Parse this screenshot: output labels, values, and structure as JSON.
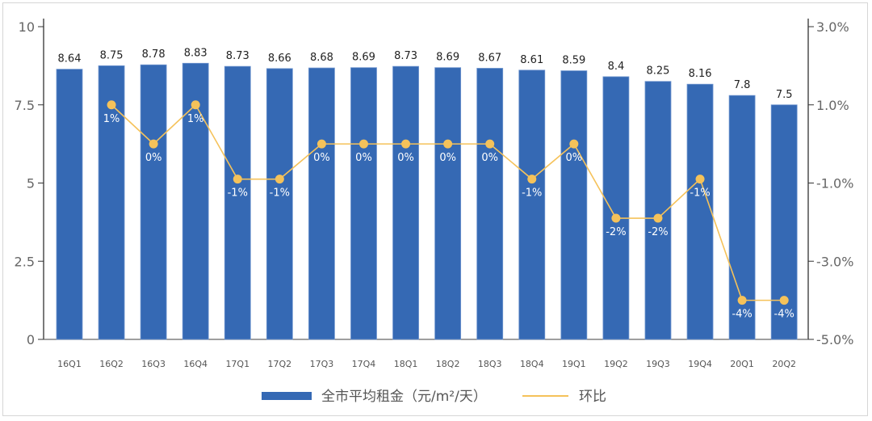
{
  "chart_data": {
    "type": "bar+line",
    "categories": [
      "16Q1",
      "16Q2",
      "16Q3",
      "16Q4",
      "17Q1",
      "17Q2",
      "17Q3",
      "17Q4",
      "18Q1",
      "18Q2",
      "18Q3",
      "18Q4",
      "19Q1",
      "19Q2",
      "19Q3",
      "19Q4",
      "20Q1",
      "20Q2"
    ],
    "series": [
      {
        "name": "全市平均租金（元/m²/天）",
        "type": "bar",
        "axis": "left",
        "color": "#3569b4",
        "values": [
          8.64,
          8.75,
          8.78,
          8.83,
          8.73,
          8.66,
          8.68,
          8.69,
          8.73,
          8.69,
          8.67,
          8.61,
          8.59,
          8.4,
          8.25,
          8.16,
          7.8,
          7.5
        ],
        "labels": [
          "8.64",
          "8.75",
          "8.78",
          "8.83",
          "8.73",
          "8.66",
          "8.68",
          "8.69",
          "8.73",
          "8.69",
          "8.67",
          "8.61",
          "8.59",
          "8.4",
          "8.25",
          "8.16",
          "7.8",
          "7.5"
        ]
      },
      {
        "name": "环比",
        "type": "line",
        "axis": "right",
        "color": "#f5c25a",
        "values": [
          null,
          1.0,
          0.0,
          1.0,
          -0.9,
          -0.9,
          0.0,
          0.0,
          0.0,
          0.0,
          0.0,
          -0.9,
          0.0,
          -1.9,
          -1.9,
          -0.9,
          -4.0,
          -4.0
        ],
        "labels": [
          "",
          "1%",
          "0%",
          "1%",
          "-1%",
          "-1%",
          "0%",
          "0%",
          "0%",
          "0%",
          "0%",
          "-1%",
          "0%",
          "-2%",
          "-2%",
          "-1%",
          "-4%",
          "-4%"
        ]
      }
    ],
    "y_left": {
      "lim": [
        0,
        10
      ],
      "ticks": [
        "0",
        "2.5",
        "5",
        "7.5",
        "10"
      ]
    },
    "y_right": {
      "lim": [
        -5,
        3
      ],
      "ticks": [
        "-5.0%",
        "-3.0%",
        "-1.0%",
        "1.0%",
        "3.0%"
      ]
    },
    "legend": {
      "position": "bottom",
      "entries": [
        "全市平均租金（元/m²/天）",
        "环比"
      ]
    },
    "grid": false
  }
}
